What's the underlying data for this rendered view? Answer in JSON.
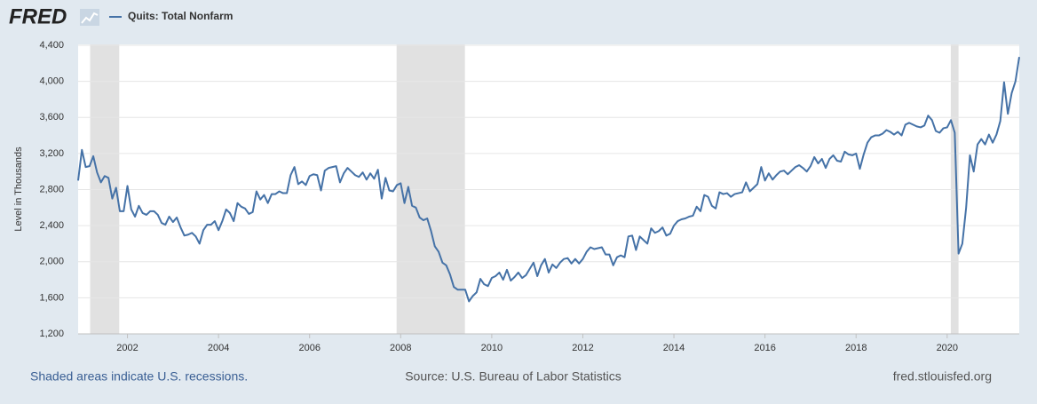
{
  "chart_data": {
    "type": "line",
    "logo": "FRED",
    "ylabel": "Level in Thousands",
    "recession_note": "Shaded areas indicate U.S. recessions.",
    "source": "Source: U.S. Bureau of Labor Statistics",
    "site": "fred.stlouisfed.org",
    "xlim": [
      2000.917,
      2021.583
    ],
    "xticks": [
      2002,
      2004,
      2006,
      2008,
      2010,
      2012,
      2014,
      2016,
      2018,
      2020
    ],
    "ylim": [
      1200,
      4400
    ],
    "yticks": [
      {
        "value": 1200,
        "label": "1,200"
      },
      {
        "value": 1600,
        "label": "1,600"
      },
      {
        "value": 2000,
        "label": "2,000"
      },
      {
        "value": 2400,
        "label": "2,400"
      },
      {
        "value": 2800,
        "label": "2,800"
      },
      {
        "value": 3200,
        "label": "3,200"
      },
      {
        "value": 3600,
        "label": "3,600"
      },
      {
        "value": 4000,
        "label": "4,000"
      },
      {
        "value": 4400,
        "label": "4,400"
      }
    ],
    "grid": true,
    "recession_color": "#e1e1e1",
    "recessions": [
      [
        2001.18,
        2001.82
      ],
      [
        2007.91,
        2009.41
      ],
      [
        2020.08,
        2020.25
      ]
    ],
    "x": [
      2000.917,
      2001,
      2001.083,
      2001.167,
      2001.25,
      2001.333,
      2001.417,
      2001.5,
      2001.583,
      2001.667,
      2001.75,
      2001.833,
      2001.917,
      2002,
      2002.083,
      2002.167,
      2002.25,
      2002.333,
      2002.417,
      2002.5,
      2002.583,
      2002.667,
      2002.75,
      2002.833,
      2002.917,
      2003,
      2003.083,
      2003.167,
      2003.25,
      2003.333,
      2003.417,
      2003.5,
      2003.583,
      2003.667,
      2003.75,
      2003.833,
      2003.917,
      2004,
      2004.083,
      2004.167,
      2004.25,
      2004.333,
      2004.417,
      2004.5,
      2004.583,
      2004.667,
      2004.75,
      2004.833,
      2004.917,
      2005,
      2005.083,
      2005.167,
      2005.25,
      2005.333,
      2005.417,
      2005.5,
      2005.583,
      2005.667,
      2005.75,
      2005.833,
      2005.917,
      2006,
      2006.083,
      2006.167,
      2006.25,
      2006.333,
      2006.417,
      2006.5,
      2006.583,
      2006.667,
      2006.75,
      2006.833,
      2006.917,
      2007,
      2007.083,
      2007.167,
      2007.25,
      2007.333,
      2007.417,
      2007.5,
      2007.583,
      2007.667,
      2007.75,
      2007.833,
      2007.917,
      2008,
      2008.083,
      2008.167,
      2008.25,
      2008.333,
      2008.417,
      2008.5,
      2008.583,
      2008.667,
      2008.75,
      2008.833,
      2008.917,
      2009,
      2009.083,
      2009.167,
      2009.25,
      2009.333,
      2009.417,
      2009.5,
      2009.583,
      2009.667,
      2009.75,
      2009.833,
      2009.917,
      2010,
      2010.083,
      2010.167,
      2010.25,
      2010.333,
      2010.417,
      2010.5,
      2010.583,
      2010.667,
      2010.75,
      2010.833,
      2010.917,
      2011,
      2011.083,
      2011.167,
      2011.25,
      2011.333,
      2011.417,
      2011.5,
      2011.583,
      2011.667,
      2011.75,
      2011.833,
      2011.917,
      2012,
      2012.083,
      2012.167,
      2012.25,
      2012.333,
      2012.417,
      2012.5,
      2012.583,
      2012.667,
      2012.75,
      2012.833,
      2012.917,
      2013,
      2013.083,
      2013.167,
      2013.25,
      2013.333,
      2013.417,
      2013.5,
      2013.583,
      2013.667,
      2013.75,
      2013.833,
      2013.917,
      2014,
      2014.083,
      2014.167,
      2014.25,
      2014.333,
      2014.417,
      2014.5,
      2014.583,
      2014.667,
      2014.75,
      2014.833,
      2014.917,
      2015,
      2015.083,
      2015.167,
      2015.25,
      2015.333,
      2015.417,
      2015.5,
      2015.583,
      2015.667,
      2015.75,
      2015.833,
      2015.917,
      2016,
      2016.083,
      2016.167,
      2016.25,
      2016.333,
      2016.417,
      2016.5,
      2016.583,
      2016.667,
      2016.75,
      2016.833,
      2016.917,
      2017,
      2017.083,
      2017.167,
      2017.25,
      2017.333,
      2017.417,
      2017.5,
      2017.583,
      2017.667,
      2017.75,
      2017.833,
      2017.917,
      2018,
      2018.083,
      2018.167,
      2018.25,
      2018.333,
      2018.417,
      2018.5,
      2018.583,
      2018.667,
      2018.75,
      2018.833,
      2018.917,
      2019,
      2019.083,
      2019.167,
      2019.25,
      2019.333,
      2019.417,
      2019.5,
      2019.583,
      2019.667,
      2019.75,
      2019.833,
      2019.917,
      2020,
      2020.083,
      2020.167,
      2020.25,
      2020.333,
      2020.417,
      2020.5,
      2020.583,
      2020.667,
      2020.75,
      2020.833,
      2020.917,
      2021,
      2021.083,
      2021.167,
      2021.25,
      2021.333,
      2021.417,
      2021.5,
      2021.583
    ],
    "series": [
      {
        "name": "Quits: Total Nonfarm",
        "color": "#4572a7",
        "values": [
          2900,
          3240,
          3050,
          3060,
          3170,
          2990,
          2880,
          2950,
          2930,
          2700,
          2820,
          2560,
          2560,
          2840,
          2580,
          2500,
          2620,
          2540,
          2520,
          2560,
          2560,
          2520,
          2430,
          2410,
          2500,
          2440,
          2490,
          2380,
          2290,
          2300,
          2320,
          2280,
          2200,
          2350,
          2410,
          2410,
          2450,
          2350,
          2450,
          2580,
          2540,
          2450,
          2650,
          2610,
          2590,
          2530,
          2550,
          2780,
          2690,
          2740,
          2650,
          2750,
          2750,
          2780,
          2760,
          2760,
          2960,
          3050,
          2860,
          2890,
          2850,
          2950,
          2970,
          2960,
          2790,
          3010,
          3040,
          3050,
          3060,
          2880,
          2980,
          3040,
          3000,
          2960,
          2940,
          2990,
          2910,
          2980,
          2920,
          3020,
          2700,
          2930,
          2790,
          2780,
          2850,
          2870,
          2650,
          2830,
          2620,
          2600,
          2490,
          2460,
          2480,
          2340,
          2170,
          2110,
          1990,
          1960,
          1860,
          1720,
          1690,
          1690,
          1690,
          1560,
          1620,
          1660,
          1810,
          1750,
          1730,
          1820,
          1840,
          1880,
          1800,
          1910,
          1790,
          1830,
          1880,
          1820,
          1850,
          1920,
          1990,
          1840,
          1960,
          2030,
          1880,
          1970,
          1930,
          1990,
          2030,
          2040,
          1980,
          2030,
          1980,
          2030,
          2110,
          2160,
          2140,
          2150,
          2160,
          2080,
          2080,
          1960,
          2050,
          2070,
          2050,
          2280,
          2290,
          2130,
          2280,
          2240,
          2200,
          2370,
          2320,
          2340,
          2380,
          2290,
          2310,
          2400,
          2450,
          2470,
          2480,
          2500,
          2510,
          2610,
          2560,
          2740,
          2720,
          2620,
          2590,
          2770,
          2750,
          2760,
          2720,
          2750,
          2760,
          2770,
          2880,
          2780,
          2820,
          2860,
          3050,
          2900,
          2980,
          2910,
          2960,
          3000,
          3010,
          2970,
          3010,
          3050,
          3070,
          3040,
          3000,
          3060,
          3160,
          3090,
          3140,
          3040,
          3140,
          3180,
          3120,
          3110,
          3220,
          3190,
          3180,
          3200,
          3030,
          3190,
          3320,
          3380,
          3400,
          3400,
          3420,
          3460,
          3440,
          3410,
          3440,
          3400,
          3520,
          3540,
          3520,
          3500,
          3490,
          3510,
          3620,
          3570,
          3450,
          3430,
          3480,
          3490,
          3570,
          3430,
          2090,
          2200,
          2600,
          3180,
          3000,
          3300,
          3360,
          3300,
          3410,
          3320,
          3410,
          3560,
          3990,
          3640,
          3870,
          4000,
          4270
        ]
      }
    ]
  }
}
